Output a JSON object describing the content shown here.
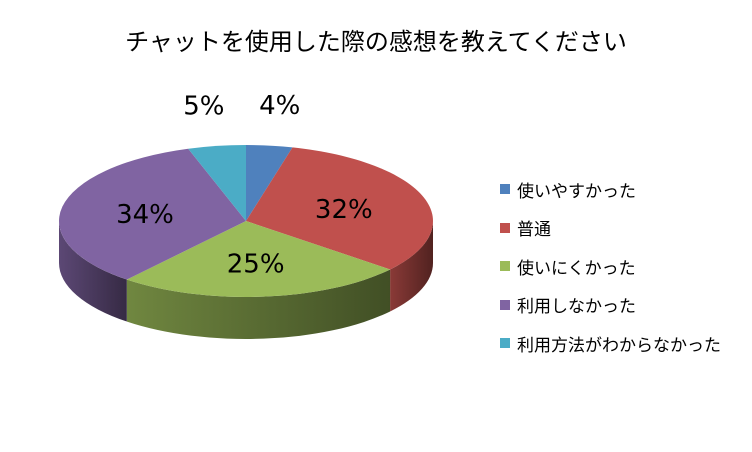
{
  "chart_data": {
    "type": "pie",
    "title": "チャットを使用した際の感想を教えてください",
    "slices": [
      {
        "name": "使いやすかった",
        "value": 4,
        "label": "4%",
        "color": "#4F81BD"
      },
      {
        "name": "普通",
        "value": 32,
        "label": "32%",
        "color": "#C0504D"
      },
      {
        "name": "使いにくかった",
        "value": 25,
        "label": "25%",
        "color": "#9BBB59"
      },
      {
        "name": "利用しなかった",
        "value": 34,
        "label": "34%",
        "color": "#8064A2"
      },
      {
        "name": "利用方法がわからなかった",
        "value": 5,
        "label": "5%",
        "color": "#4BACC6"
      }
    ],
    "style": "3d",
    "legend_position": "right"
  }
}
